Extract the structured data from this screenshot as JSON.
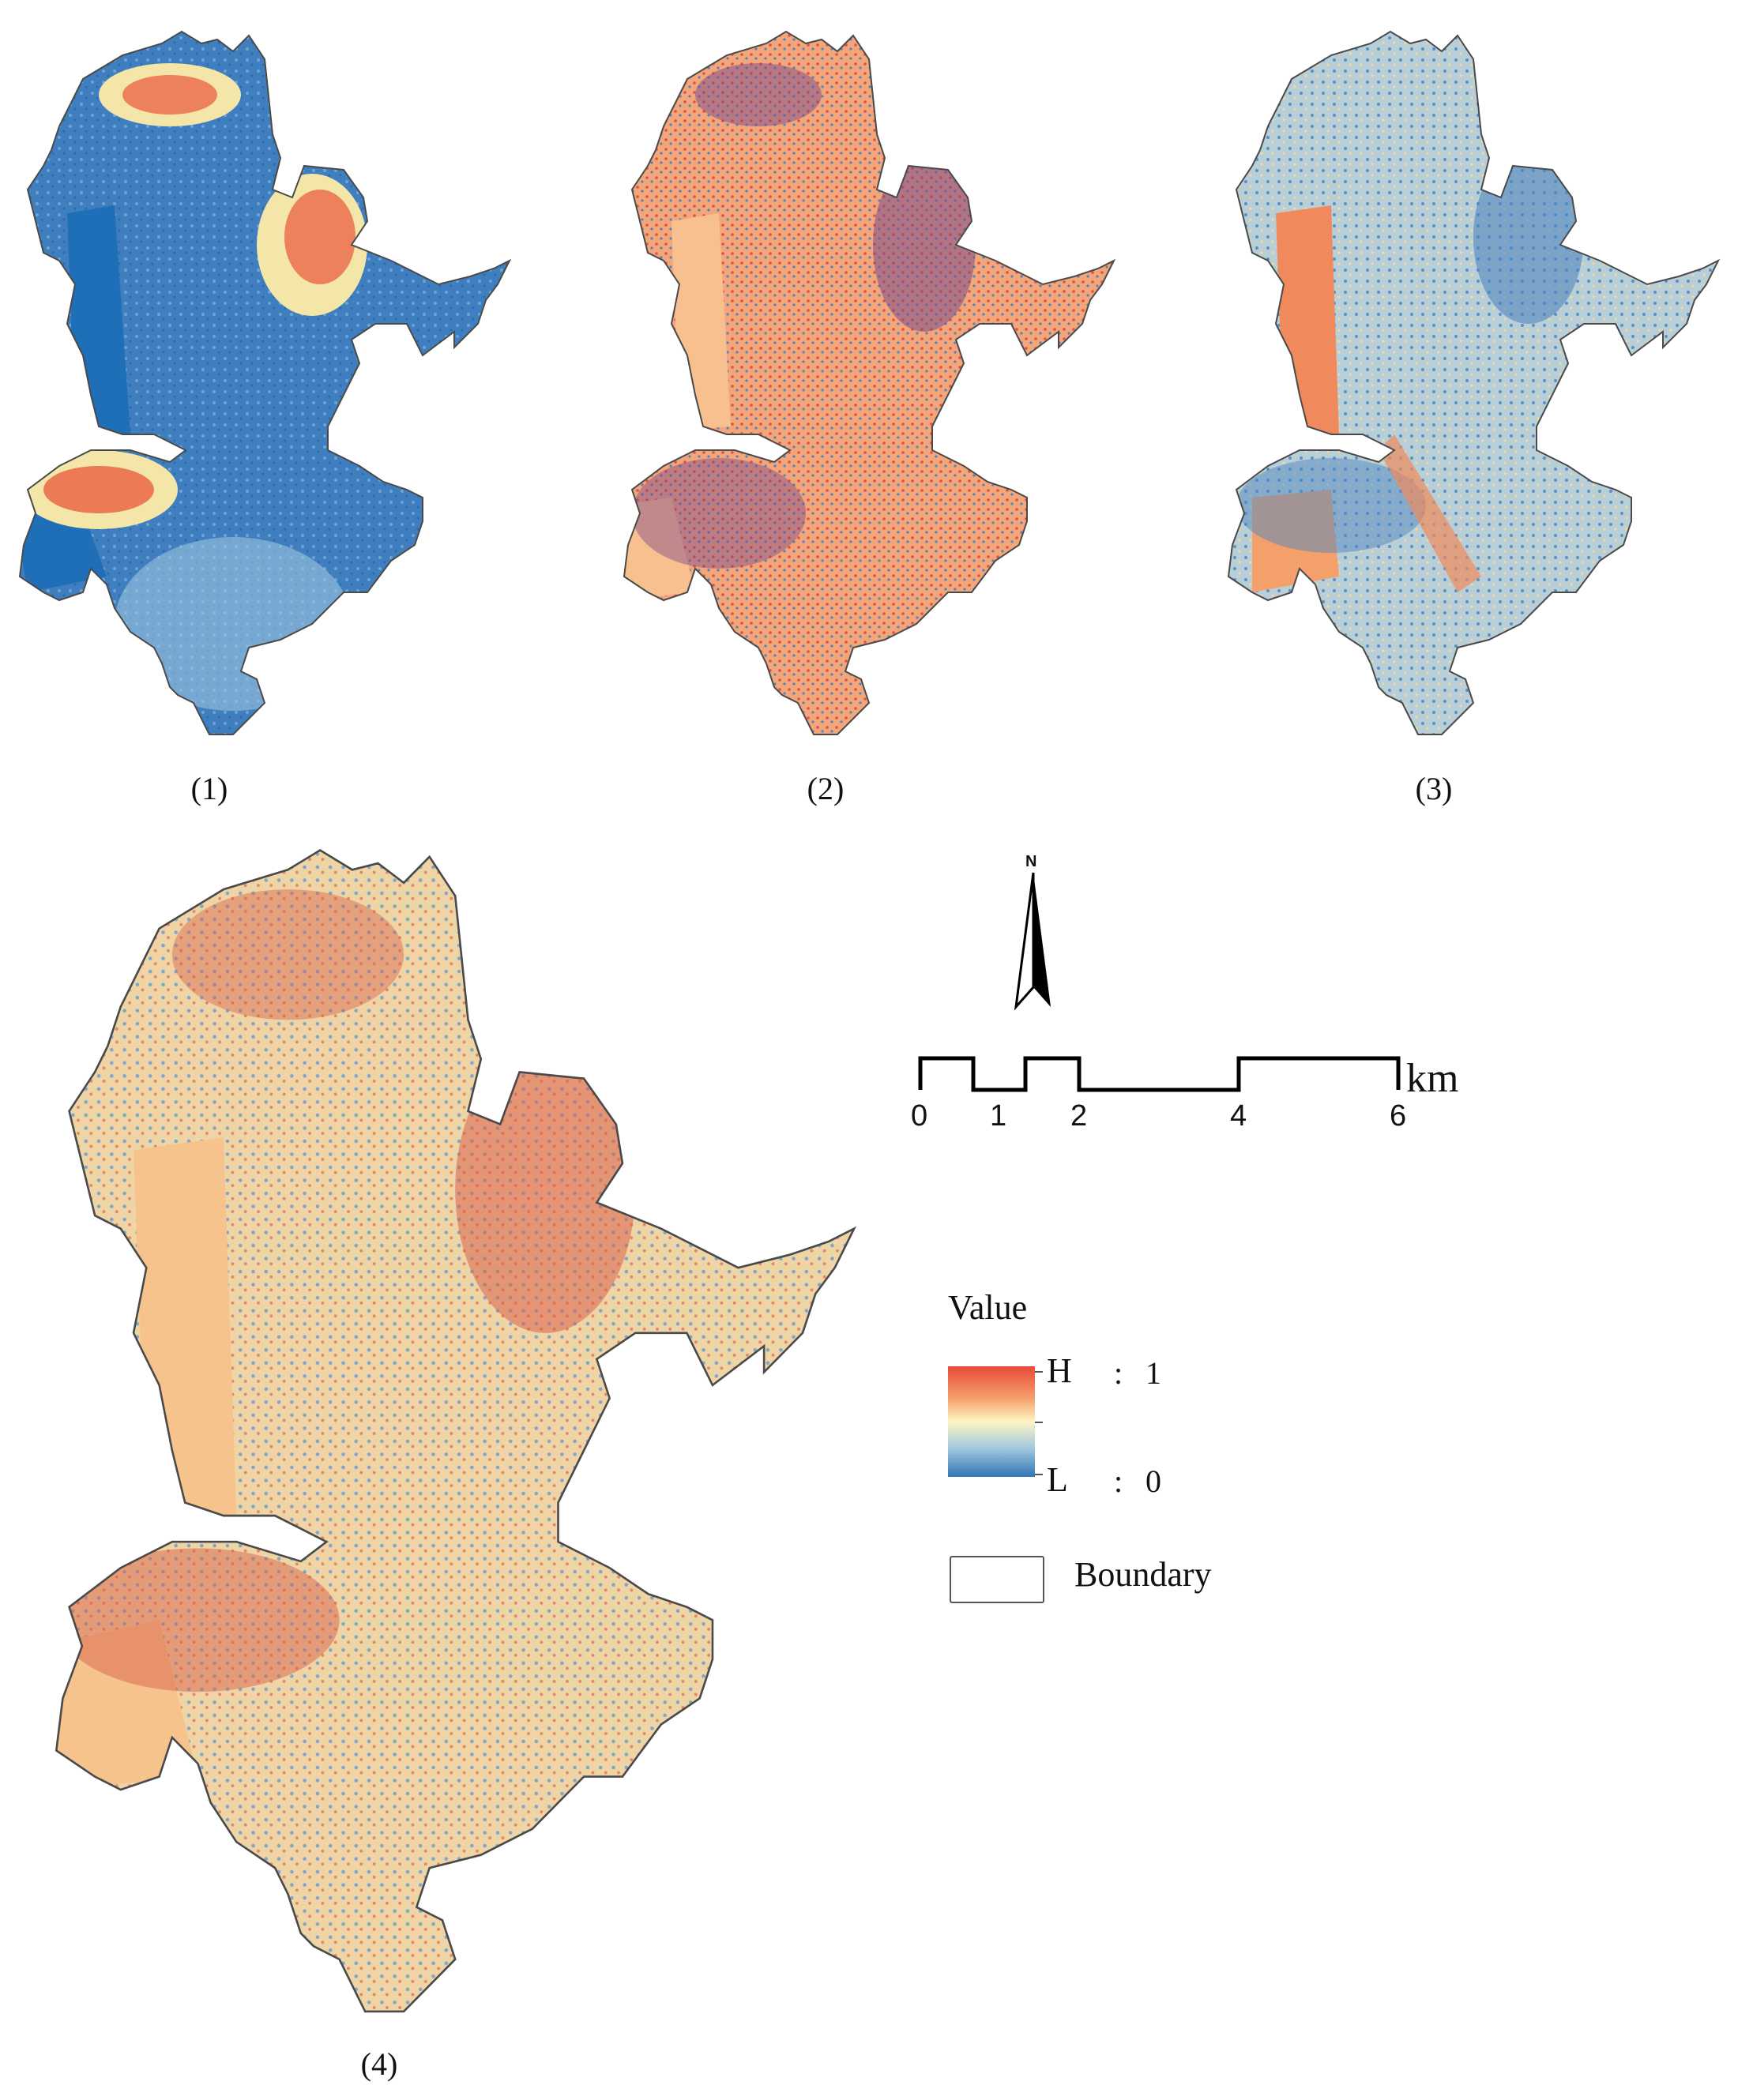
{
  "panels": [
    {
      "caption": "(1)",
      "scheme": "blue"
    },
    {
      "caption": "(2)",
      "scheme": "red"
    },
    {
      "caption": "(3)",
      "scheme": "mixed"
    },
    {
      "caption": "(4)",
      "scheme": "final"
    }
  ],
  "north_arrow": {
    "label": "N",
    "icon": "north-arrow-icon"
  },
  "scale_bar": {
    "ticks": [
      "0",
      "1",
      "2",
      "4",
      "6"
    ],
    "unit": "km"
  },
  "legend": {
    "title": "Value",
    "high_label": "H",
    "high_value": "1",
    "low_label": "L",
    "low_value": "0",
    "separator": ":",
    "boundary_label": "Boundary",
    "gradient_colors": [
      "#d7191c",
      "#fdae61",
      "#ffffbf",
      "#abd9e9",
      "#2c7bb6"
    ]
  }
}
